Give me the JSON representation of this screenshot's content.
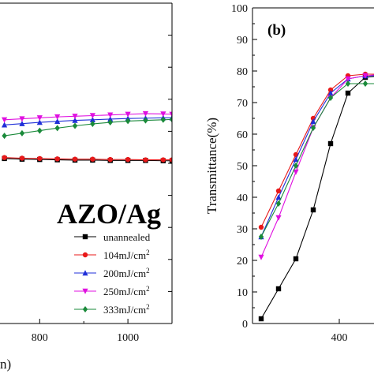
{
  "chart_data": [
    {
      "panel": "a",
      "type": "line",
      "annotation": "AZO/Ag",
      "xlabel_visible_fragment": "n)",
      "x_ticks": [
        "800",
        "1000"
      ],
      "xlim": [
        710,
        1100
      ],
      "ylim": [
        0,
        100
      ],
      "series": [
        {
          "name": "unannealed",
          "color": "#000000",
          "marker": "square",
          "x": [
            720,
            760,
            800,
            840,
            880,
            920,
            960,
            1000,
            1040,
            1080,
            1100
          ],
          "y": [
            51.5,
            51.3,
            51.2,
            51.1,
            51.0,
            51.0,
            50.9,
            50.9,
            50.9,
            50.8,
            50.8
          ]
        },
        {
          "name": "104mJ/cm²",
          "color": "#e8191a",
          "marker": "circle",
          "x": [
            720,
            760,
            800,
            840,
            880,
            920,
            960,
            1000,
            1040,
            1080,
            1100
          ],
          "y": [
            51.8,
            51.6,
            51.5,
            51.4,
            51.3,
            51.3,
            51.2,
            51.2,
            51.1,
            51.1,
            51.1
          ]
        },
        {
          "name": "200mJ/cm²",
          "color": "#1f2fd8",
          "marker": "triangle-up",
          "x": [
            720,
            760,
            800,
            840,
            880,
            920,
            960,
            1000,
            1040,
            1080,
            1100
          ],
          "y": [
            62.0,
            62.4,
            62.8,
            63.1,
            63.4,
            63.6,
            63.8,
            64.0,
            64.1,
            64.2,
            64.2
          ]
        },
        {
          "name": "250mJ/cm²",
          "color": "#e010e0",
          "marker": "triangle-down",
          "x": [
            720,
            760,
            800,
            840,
            880,
            920,
            960,
            1000,
            1040,
            1080,
            1100
          ],
          "y": [
            63.6,
            63.9,
            64.2,
            64.5,
            64.7,
            64.9,
            65.1,
            65.3,
            65.5,
            65.4,
            65.3
          ]
        },
        {
          "name": "333mJ/cm²",
          "color": "#1a8a3a",
          "marker": "diamond",
          "x": [
            720,
            760,
            800,
            840,
            880,
            920,
            960,
            1000,
            1040,
            1080,
            1100
          ],
          "y": [
            58.6,
            59.4,
            60.2,
            61.0,
            61.7,
            62.3,
            62.8,
            63.2,
            63.4,
            63.6,
            63.7
          ]
        }
      ]
    },
    {
      "panel": "b",
      "type": "line",
      "label": "(b)",
      "ylabel": "Transmittance(%)",
      "x_ticks": [
        "400"
      ],
      "y_ticks": [
        "0",
        "10",
        "20",
        "30",
        "40",
        "50",
        "60",
        "70",
        "80",
        "90",
        "100"
      ],
      "xlim": [
        300,
        600
      ],
      "ylim": [
        0,
        100
      ],
      "series": [
        {
          "name": "unannealed",
          "color": "#000000",
          "marker": "square",
          "x": [
            310,
            330,
            350,
            370,
            390,
            410,
            430,
            450,
            470,
            490,
            510,
            530,
            550,
            570,
            590
          ],
          "y": [
            1.5,
            11,
            20.5,
            36,
            57,
            73,
            78,
            78.5,
            78.5,
            78,
            77,
            75,
            71,
            68.5,
            67
          ]
        },
        {
          "name": "104mJ/cm²",
          "color": "#e8191a",
          "marker": "circle",
          "x": [
            310,
            330,
            350,
            370,
            390,
            410,
            430,
            450,
            470,
            490,
            510,
            530,
            550,
            570,
            590
          ],
          "y": [
            30.5,
            42,
            53.5,
            65,
            74,
            78.5,
            79,
            79,
            78.5,
            78,
            77,
            76,
            75,
            74.5,
            74
          ]
        },
        {
          "name": "200mJ/cm²",
          "color": "#1f2fd8",
          "marker": "triangle-up",
          "x": [
            310,
            330,
            350,
            370,
            390,
            410,
            430,
            450,
            470,
            490,
            510,
            530,
            550,
            570,
            590
          ],
          "y": [
            27.5,
            40,
            52,
            64,
            73,
            77.5,
            78.5,
            78.5,
            78.5,
            78.5,
            78,
            78,
            77.5,
            77.5,
            77
          ]
        },
        {
          "name": "250mJ/cm²",
          "color": "#e010e0",
          "marker": "triangle-down",
          "x": [
            310,
            330,
            350,
            370,
            390,
            410,
            430,
            450,
            470,
            490,
            510,
            530,
            550,
            570,
            590
          ],
          "y": [
            21,
            33.5,
            48,
            62,
            71.5,
            77.5,
            78.5,
            79,
            79,
            78.5,
            78.5,
            78.5,
            78,
            78,
            78
          ]
        },
        {
          "name": "333mJ/cm²",
          "color": "#1a8a3a",
          "marker": "diamond",
          "x": [
            310,
            330,
            350,
            370,
            390,
            410,
            430,
            450,
            470,
            490,
            510,
            530,
            550,
            570,
            590
          ],
          "y": [
            27.5,
            38,
            50,
            62,
            71.5,
            76,
            76,
            76,
            76,
            76,
            76,
            75.5,
            75.5,
            75,
            75
          ]
        }
      ]
    }
  ]
}
